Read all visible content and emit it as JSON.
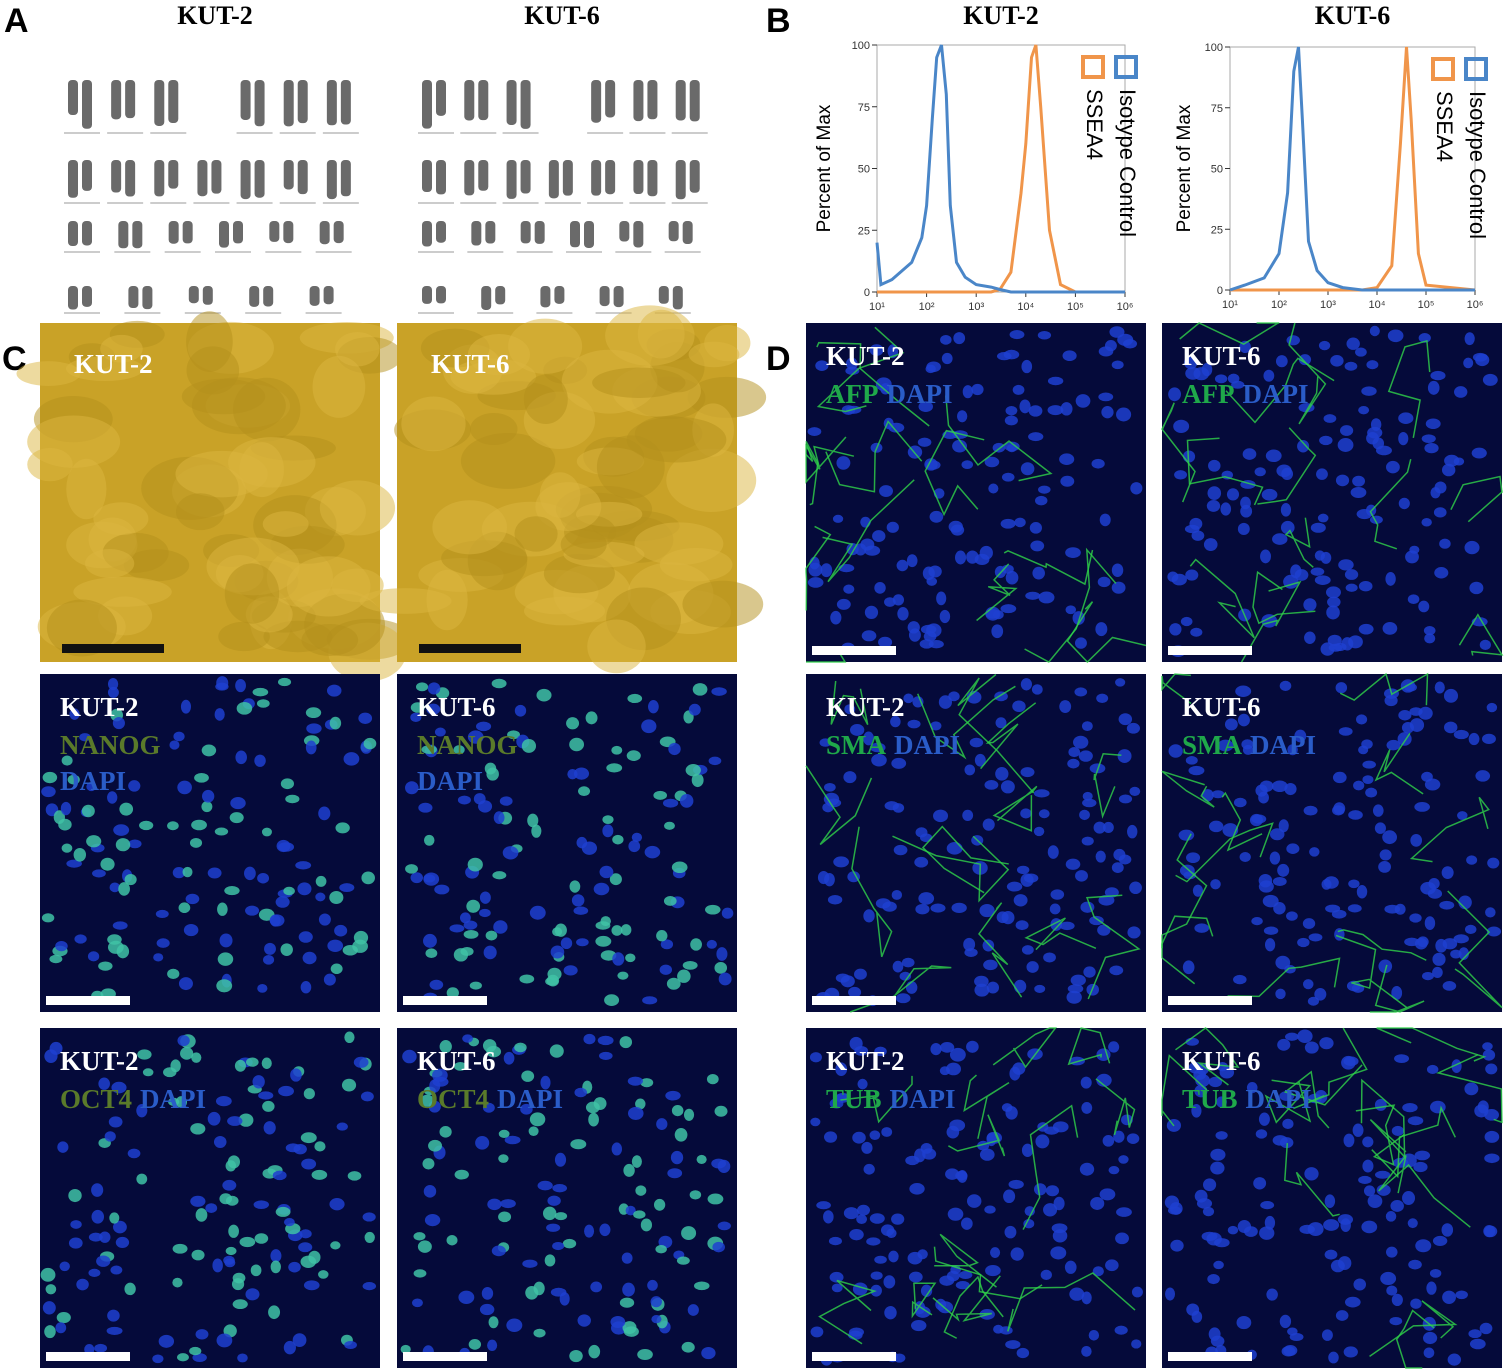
{
  "panel_labels": [
    "A",
    "B",
    "C",
    "D"
  ],
  "karyotype": {
    "titles": [
      "KUT-2",
      "KUT-6"
    ]
  },
  "chart_data": [
    {
      "type": "line",
      "title": "KUT-2",
      "ylabel": "Percent of Max",
      "xlog": true,
      "xlim": [
        10,
        1000000
      ],
      "xticks": [
        {
          "value": 10,
          "label": "10¹"
        },
        {
          "value": 100,
          "label": "10²"
        },
        {
          "value": 1000,
          "label": "10³"
        },
        {
          "value": 10000,
          "label": "10⁴"
        },
        {
          "value": 100000,
          "label": "10⁵"
        },
        {
          "value": 1000000,
          "label": "10⁶"
        }
      ],
      "ylim": [
        0,
        100
      ],
      "yticks": [
        0,
        25,
        50,
        75,
        100
      ],
      "x": [
        10,
        12,
        20,
        50,
        80,
        100,
        130,
        160,
        200,
        250,
        300,
        400,
        600,
        1000,
        2000,
        3000,
        5000,
        8000,
        10000,
        13000,
        16000,
        20000,
        30000,
        50000,
        100000,
        1000000
      ],
      "series": [
        {
          "name": "SSEA4",
          "color": "#f0954a",
          "values": [
            0,
            0,
            0,
            0,
            0,
            0,
            0,
            0,
            0,
            0,
            0,
            0,
            0,
            0,
            0,
            1,
            8,
            40,
            60,
            95,
            100,
            75,
            25,
            3,
            0,
            0
          ]
        },
        {
          "name": "Isotype Control",
          "color": "#4a86c8",
          "values": [
            20,
            3,
            5,
            12,
            22,
            35,
            70,
            95,
            100,
            80,
            35,
            12,
            6,
            3,
            2,
            1,
            0,
            0,
            0,
            0,
            0,
            0,
            0,
            0,
            0,
            0
          ]
        }
      ]
    },
    {
      "type": "line",
      "title": "KUT-6",
      "ylabel": "Percent of Max",
      "xlog": true,
      "xlim": [
        10,
        1000000
      ],
      "xticks": [
        {
          "value": 10,
          "label": "10¹"
        },
        {
          "value": 100,
          "label": "10²"
        },
        {
          "value": 1000,
          "label": "10³"
        },
        {
          "value": 10000,
          "label": "10⁴"
        },
        {
          "value": 100000,
          "label": "10⁵"
        },
        {
          "value": 1000000,
          "label": "10⁶"
        }
      ],
      "ylim": [
        0,
        100
      ],
      "yticks": [
        0,
        25,
        50,
        75,
        100
      ],
      "x": [
        10,
        20,
        50,
        100,
        150,
        200,
        250,
        300,
        400,
        600,
        1000,
        2000,
        5000,
        10000,
        20000,
        30000,
        40000,
        50000,
        70000,
        100000,
        1000000
      ],
      "series": [
        {
          "name": "SSEA4",
          "color": "#f0954a",
          "values": [
            0,
            0,
            0,
            0,
            0,
            0,
            0,
            0,
            0,
            0,
            0,
            0,
            0,
            1,
            10,
            60,
            100,
            70,
            15,
            2,
            0
          ]
        },
        {
          "name": "Isotype Control",
          "color": "#4a86c8",
          "values": [
            0,
            2,
            5,
            15,
            40,
            90,
            100,
            70,
            20,
            8,
            3,
            1,
            0,
            0,
            0,
            0,
            0,
            0,
            0,
            0,
            0
          ]
        }
      ]
    }
  ],
  "panel_c": [
    [
      {
        "line": "KUT-2",
        "stains": []
      },
      {
        "line": "KUT-6",
        "stains": []
      }
    ],
    [
      {
        "line": "KUT-2",
        "stains": [
          "NANOG",
          "DAPI"
        ]
      },
      {
        "line": "KUT-6",
        "stains": [
          "NANOG",
          "DAPI"
        ]
      }
    ],
    [
      {
        "line": "KUT-2",
        "stains": [
          "OCT4",
          "DAPI"
        ]
      },
      {
        "line": "KUT-6",
        "stains": [
          "OCT4",
          "DAPI"
        ]
      }
    ]
  ],
  "panel_d": [
    [
      {
        "line": "KUT-2",
        "stains": [
          "AFP",
          "DAPI"
        ]
      },
      {
        "line": "KUT-6",
        "stains": [
          "AFP",
          "DAPI"
        ]
      }
    ],
    [
      {
        "line": "KUT-2",
        "stains": [
          "SMA",
          "DAPI"
        ]
      },
      {
        "line": "KUT-6",
        "stains": [
          "SMA",
          "DAPI"
        ]
      }
    ],
    [
      {
        "line": "KUT-2",
        "stains": [
          "TUB",
          "DAPI"
        ]
      },
      {
        "line": "KUT-6",
        "stains": [
          "TUB",
          "DAPI"
        ]
      }
    ]
  ]
}
